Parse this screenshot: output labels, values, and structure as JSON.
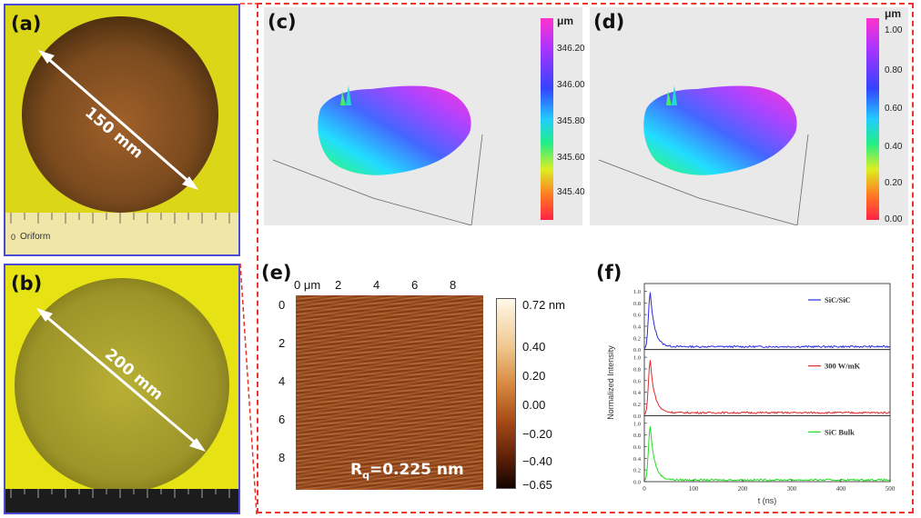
{
  "panels": {
    "a": {
      "label": "(a)",
      "dimension": "150 mm",
      "ruler_brand": "Oriform",
      "ruler_zero": "0"
    },
    "b": {
      "label": "(b)",
      "dimension": "200 mm"
    },
    "c": {
      "label": "(c)",
      "unit": "μm",
      "colorbar_ticks": [
        "346.20",
        "346.00",
        "345.80",
        "345.60",
        "345.40"
      ]
    },
    "d": {
      "label": "(d)",
      "unit": "μm",
      "colorbar_ticks": [
        "1.00",
        "0.80",
        "0.60",
        "0.40",
        "0.20",
        "0.00"
      ]
    },
    "e": {
      "label": "(e)",
      "x_ticks": [
        "0 μm",
        "2",
        "4",
        "6",
        "8"
      ],
      "y_ticks": [
        "0",
        "2",
        "4",
        "6",
        "8"
      ],
      "colorbar_ticks": [
        "0.72 nm",
        "0.40",
        "0.20",
        "0.00",
        "−0.20",
        "−0.40",
        "−0.65"
      ],
      "roughness_prefix": "R",
      "roughness_sub": "q",
      "roughness_value": "=0.225 nm"
    },
    "f": {
      "label": "(f)"
    }
  },
  "chart_data": {
    "type": "line",
    "xlabel": "t (ns)",
    "ylabel": "Normalized Intensity",
    "xlim": [
      0,
      500
    ],
    "ylim": [
      0,
      1.1
    ],
    "x_ticks": [
      0,
      100,
      200,
      300,
      400,
      500
    ],
    "y_ticks": [
      0.0,
      0.2,
      0.4,
      0.6,
      0.8,
      1.0
    ],
    "legend_position": "top-right",
    "series": [
      {
        "name": "SiC/SiC",
        "color": "#2a2ae0",
        "peak_x": 12,
        "peak_y": 0.96,
        "tail_y": 0.05
      },
      {
        "name": "300 W/mK",
        "color": "#e02a2a",
        "peak_x": 12,
        "peak_y": 0.93,
        "tail_y": 0.05
      },
      {
        "name": "SiC Bulk",
        "color": "#22dd22",
        "peak_x": 12,
        "peak_y": 0.93,
        "tail_y": 0.03
      }
    ]
  },
  "colors": {
    "frame_blue": "#4b4bd6",
    "dashed_red": "#e8352c",
    "yellow_bg": "#e8e214"
  }
}
